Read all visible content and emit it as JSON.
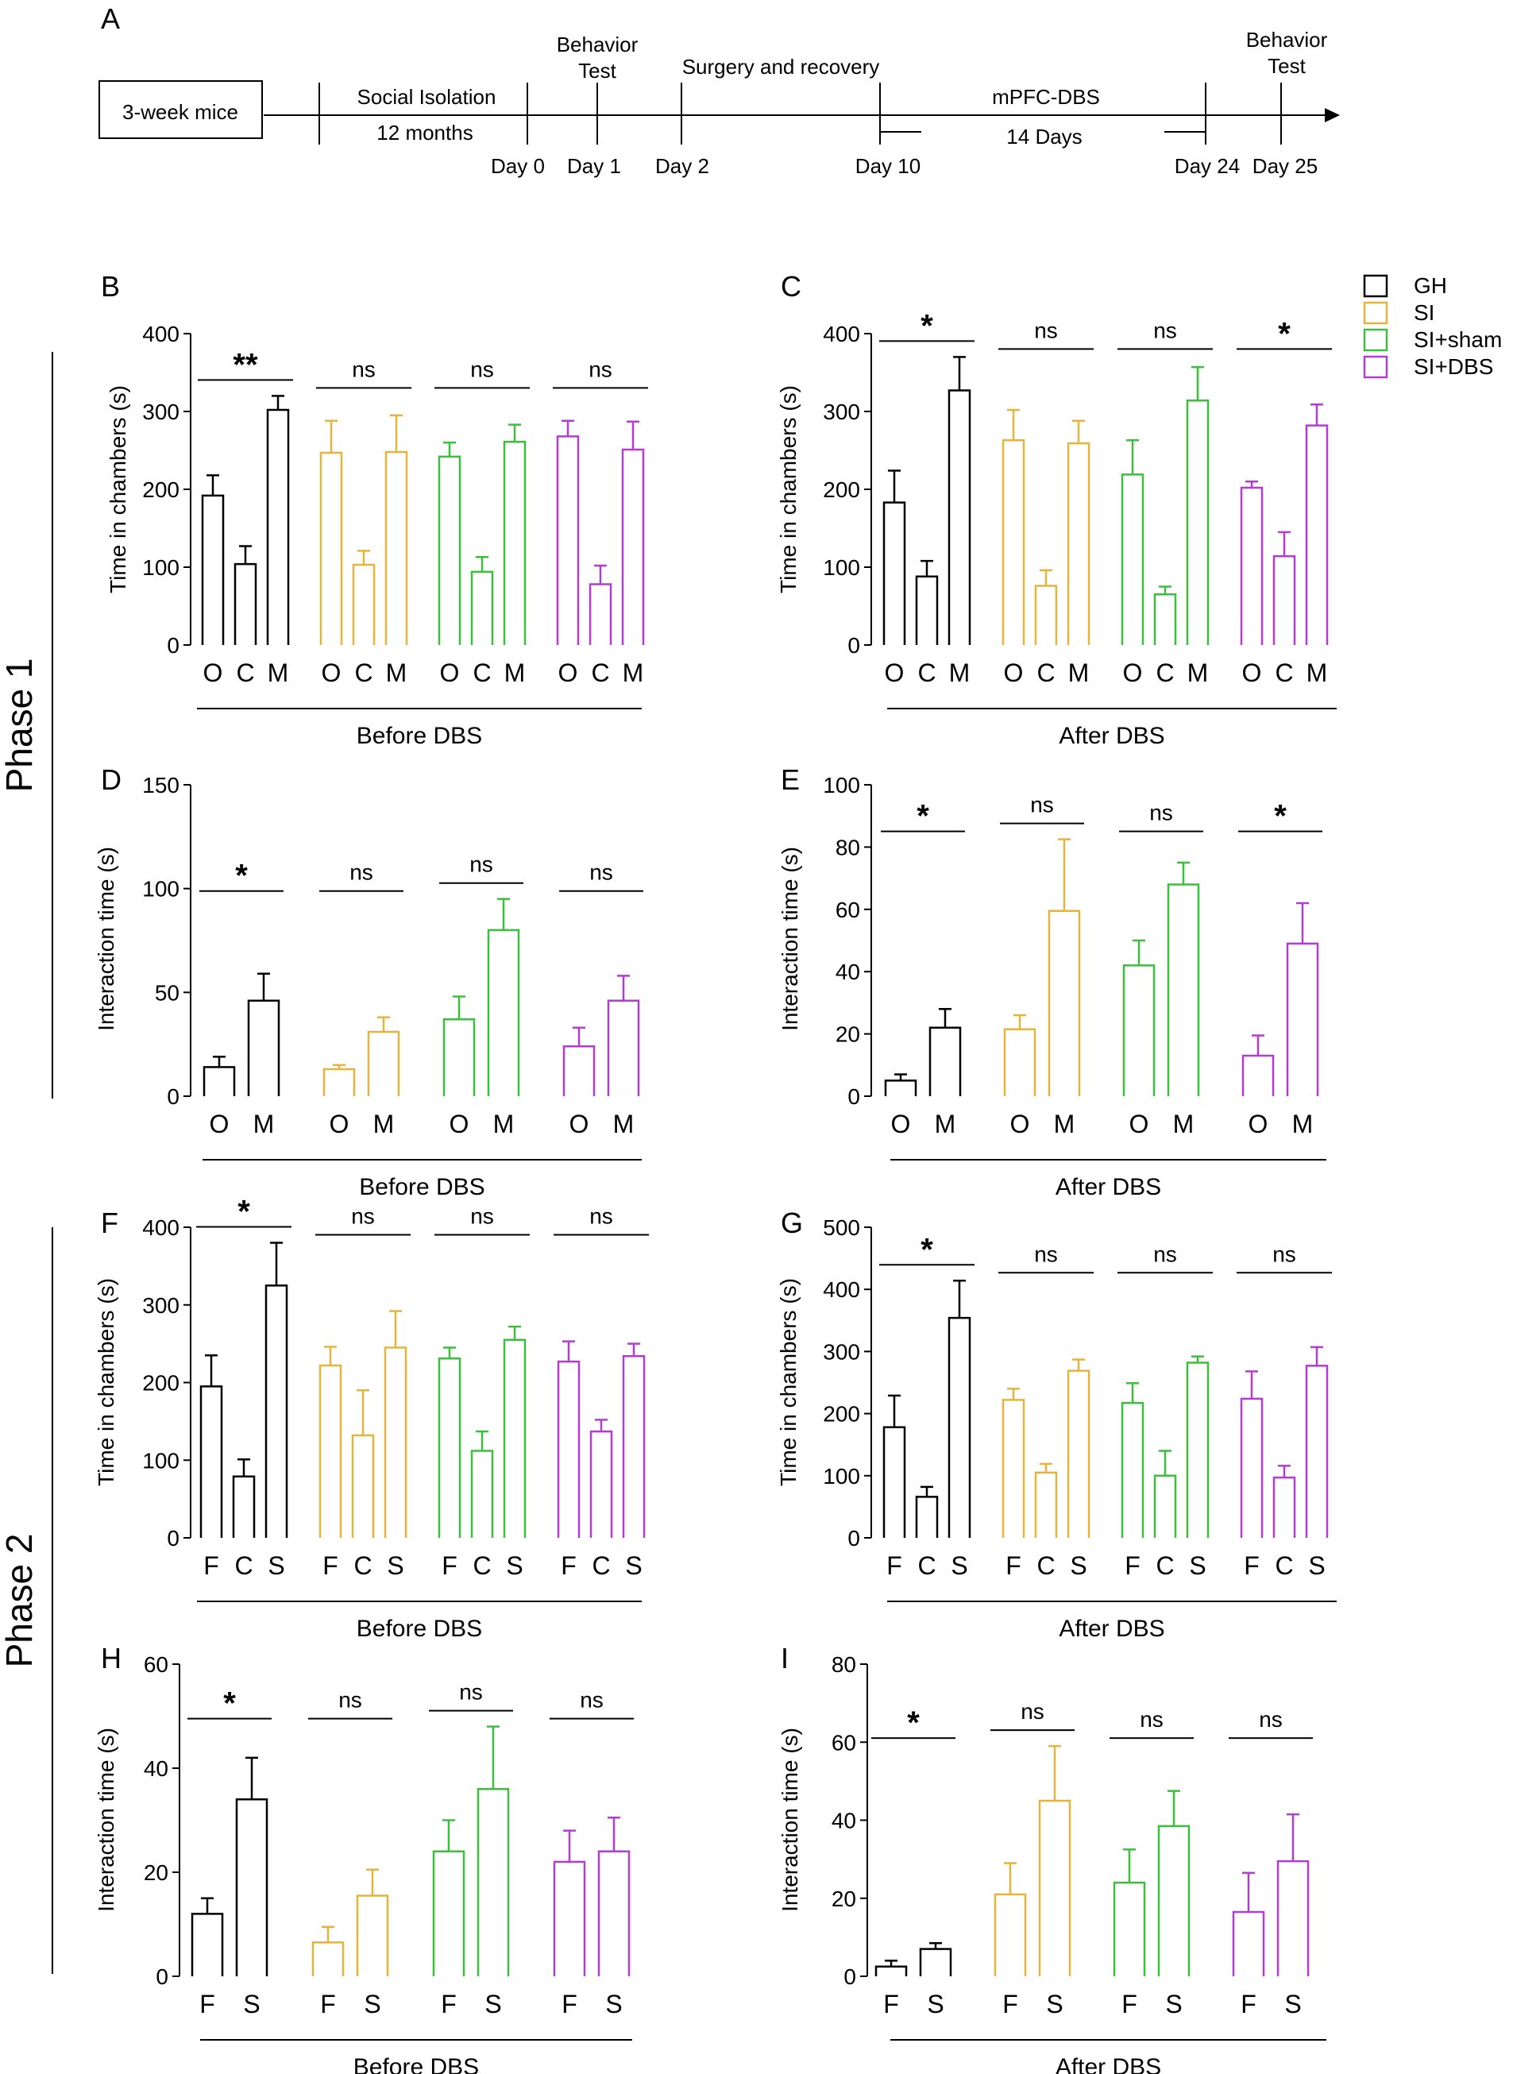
{
  "figure": {
    "colors": {
      "GH": "#000000",
      "SI": "#E6B43C",
      "SI+sham": "#3CBF3C",
      "SI+DBS": "#B43CD2"
    },
    "legend": [
      {
        "name": "GH",
        "color": "#000000"
      },
      {
        "name": "SI",
        "color": "#E6B43C"
      },
      {
        "name": "SI+sham",
        "color": "#3CBF3C"
      },
      {
        "name": "SI+DBS",
        "color": "#B43CD2"
      }
    ],
    "phases": [
      "Phase 1",
      "Phase 2"
    ],
    "timeline": {
      "letter": "A",
      "start_box": "3-week mice",
      "stages": [
        "Social Isolation",
        "12 months",
        "Behavior",
        "Test",
        "Surgery and recovery",
        "mPFC-DBS",
        "14 Days",
        "Behavior",
        "Test"
      ],
      "days": [
        "Day 0",
        "Day 1",
        "Day 2",
        "Day 10",
        "Day 24",
        "Day 25"
      ]
    }
  },
  "chart_data": [
    {
      "panel": "B",
      "type": "bar",
      "ylabel": "Time in chambers (s)",
      "xlabel": "Before DBS",
      "ylim": [
        0,
        400
      ],
      "yticks": [
        0,
        100,
        200,
        300,
        400
      ],
      "groups": [
        "GH",
        "SI",
        "SI+sham",
        "SI+DBS"
      ],
      "categories": [
        "O",
        "C",
        "M"
      ],
      "series": [
        {
          "name": "GH",
          "values": [
            192,
            104,
            302
          ],
          "errors": [
            26,
            23,
            18
          ]
        },
        {
          "name": "SI",
          "values": [
            247,
            103,
            248
          ],
          "errors": [
            41,
            18,
            47
          ]
        },
        {
          "name": "SI+sham",
          "values": [
            242,
            94,
            261
          ],
          "errors": [
            18,
            19,
            22
          ]
        },
        {
          "name": "SI+DBS",
          "values": [
            268,
            78,
            251
          ],
          "errors": [
            20,
            24,
            36
          ]
        }
      ],
      "significance": [
        "**",
        "ns",
        "ns",
        "ns"
      ]
    },
    {
      "panel": "C",
      "type": "bar",
      "ylabel": "Time in chambers (s)",
      "xlabel": "After DBS",
      "ylim": [
        0,
        400
      ],
      "yticks": [
        0,
        100,
        200,
        300,
        400
      ],
      "groups": [
        "GH",
        "SI",
        "SI+sham",
        "SI+DBS"
      ],
      "categories": [
        "O",
        "C",
        "M"
      ],
      "series": [
        {
          "name": "GH",
          "values": [
            183,
            88,
            327
          ],
          "errors": [
            41,
            20,
            43
          ]
        },
        {
          "name": "SI",
          "values": [
            263,
            76,
            259
          ],
          "errors": [
            39,
            20,
            29
          ]
        },
        {
          "name": "SI+sham",
          "values": [
            219,
            65,
            314
          ],
          "errors": [
            44,
            10,
            43
          ]
        },
        {
          "name": "SI+DBS",
          "values": [
            202,
            114,
            282
          ],
          "errors": [
            8,
            31,
            27
          ]
        }
      ],
      "significance": [
        "*",
        "ns",
        "ns",
        "*"
      ]
    },
    {
      "panel": "D",
      "type": "bar",
      "ylabel": "Interaction time (s)",
      "xlabel": "Before DBS",
      "ylim": [
        0,
        150
      ],
      "yticks": [
        0,
        50,
        100,
        150
      ],
      "groups": [
        "GH",
        "SI",
        "SI+sham",
        "SI+DBS"
      ],
      "categories": [
        "O",
        "M"
      ],
      "series": [
        {
          "name": "GH",
          "values": [
            14,
            46
          ],
          "errors": [
            5,
            13
          ]
        },
        {
          "name": "SI",
          "values": [
            13,
            31
          ],
          "errors": [
            2,
            7
          ]
        },
        {
          "name": "SI+sham",
          "values": [
            37,
            80
          ],
          "errors": [
            11,
            15
          ]
        },
        {
          "name": "SI+DBS",
          "values": [
            24,
            46
          ],
          "errors": [
            9,
            12
          ]
        }
      ],
      "significance": [
        "*",
        "ns",
        "ns",
        "ns"
      ]
    },
    {
      "panel": "E",
      "type": "bar",
      "ylabel": "Interaction time (s)",
      "xlabel": "After DBS",
      "ylim": [
        0,
        100
      ],
      "yticks": [
        0,
        20,
        40,
        60,
        80,
        100
      ],
      "groups": [
        "GH",
        "SI",
        "SI+sham",
        "SI+DBS"
      ],
      "categories": [
        "O",
        "M"
      ],
      "series": [
        {
          "name": "GH",
          "values": [
            5,
            22
          ],
          "errors": [
            2,
            6
          ]
        },
        {
          "name": "SI",
          "values": [
            21.5,
            59.5
          ],
          "errors": [
            4.5,
            23
          ]
        },
        {
          "name": "SI+sham",
          "values": [
            42,
            68
          ],
          "errors": [
            8,
            7
          ]
        },
        {
          "name": "SI+DBS",
          "values": [
            13,
            49
          ],
          "errors": [
            6.5,
            13
          ]
        }
      ],
      "significance": [
        "*",
        "ns",
        "ns",
        "*"
      ]
    },
    {
      "panel": "F",
      "type": "bar",
      "ylabel": "Time in chambers (s)",
      "xlabel": "Before DBS",
      "ylim": [
        0,
        400
      ],
      "yticks": [
        0,
        100,
        200,
        300,
        400
      ],
      "groups": [
        "GH",
        "SI",
        "SI+sham",
        "SI+DBS"
      ],
      "categories": [
        "F",
        "C",
        "S"
      ],
      "series": [
        {
          "name": "GH",
          "values": [
            195,
            79,
            325
          ],
          "errors": [
            40,
            22,
            55
          ]
        },
        {
          "name": "SI",
          "values": [
            222,
            132,
            245
          ],
          "errors": [
            24,
            58,
            47
          ]
        },
        {
          "name": "SI+sham",
          "values": [
            231,
            112,
            255
          ],
          "errors": [
            14,
            25,
            17
          ]
        },
        {
          "name": "SI+DBS",
          "values": [
            227,
            137,
            234
          ],
          "errors": [
            26,
            15,
            16
          ]
        }
      ],
      "significance": [
        "*",
        "ns",
        "ns",
        "ns"
      ]
    },
    {
      "panel": "G",
      "type": "bar",
      "ylabel": "Time in chambers (s)",
      "xlabel": "After DBS",
      "ylim": [
        0,
        500
      ],
      "yticks": [
        0,
        100,
        200,
        300,
        400,
        500
      ],
      "groups": [
        "GH",
        "SI",
        "SI+sham",
        "SI+DBS"
      ],
      "categories": [
        "F",
        "C",
        "S"
      ],
      "series": [
        {
          "name": "GH",
          "values": [
            178,
            66,
            354
          ],
          "errors": [
            51,
            16,
            60
          ]
        },
        {
          "name": "SI",
          "values": [
            222,
            105,
            269
          ],
          "errors": [
            18,
            14,
            18
          ]
        },
        {
          "name": "SI+sham",
          "values": [
            217,
            100,
            282
          ],
          "errors": [
            32,
            40,
            10
          ]
        },
        {
          "name": "SI+DBS",
          "values": [
            224,
            97,
            277
          ],
          "errors": [
            44,
            19,
            30
          ]
        }
      ],
      "significance": [
        "*",
        "ns",
        "ns",
        "ns"
      ]
    },
    {
      "panel": "H",
      "type": "bar",
      "ylabel": "Interaction time (s)",
      "xlabel": "Before DBS",
      "ylim": [
        0,
        60
      ],
      "yticks": [
        0,
        20,
        40,
        60
      ],
      "groups": [
        "GH",
        "SI",
        "SI+sham",
        "SI+DBS"
      ],
      "categories": [
        "F",
        "S"
      ],
      "series": [
        {
          "name": "GH",
          "values": [
            12,
            34
          ],
          "errors": [
            3,
            8
          ]
        },
        {
          "name": "SI",
          "values": [
            6.5,
            15.5
          ],
          "errors": [
            3,
            5
          ]
        },
        {
          "name": "SI+sham",
          "values": [
            24,
            36
          ],
          "errors": [
            6,
            12
          ]
        },
        {
          "name": "SI+DBS",
          "values": [
            22,
            24
          ],
          "errors": [
            6,
            6.5
          ]
        }
      ],
      "significance": [
        "*",
        "ns",
        "ns",
        "ns"
      ]
    },
    {
      "panel": "I",
      "type": "bar",
      "ylabel": "Interaction time (s)",
      "xlabel": "After DBS",
      "ylim": [
        0,
        80
      ],
      "yticks": [
        0,
        20,
        40,
        60,
        80
      ],
      "groups": [
        "GH",
        "SI",
        "SI+sham",
        "SI+DBS"
      ],
      "categories": [
        "F",
        "S"
      ],
      "series": [
        {
          "name": "GH",
          "values": [
            2.5,
            7
          ],
          "errors": [
            1.5,
            1.5
          ]
        },
        {
          "name": "SI",
          "values": [
            21,
            45
          ],
          "errors": [
            8,
            14
          ]
        },
        {
          "name": "SI+sham",
          "values": [
            24,
            38.5
          ],
          "errors": [
            8.5,
            9
          ]
        },
        {
          "name": "SI+DBS",
          "values": [
            16.5,
            29.5
          ],
          "errors": [
            10,
            12
          ]
        }
      ],
      "significance": [
        "*",
        "ns",
        "ns",
        "ns"
      ]
    }
  ]
}
